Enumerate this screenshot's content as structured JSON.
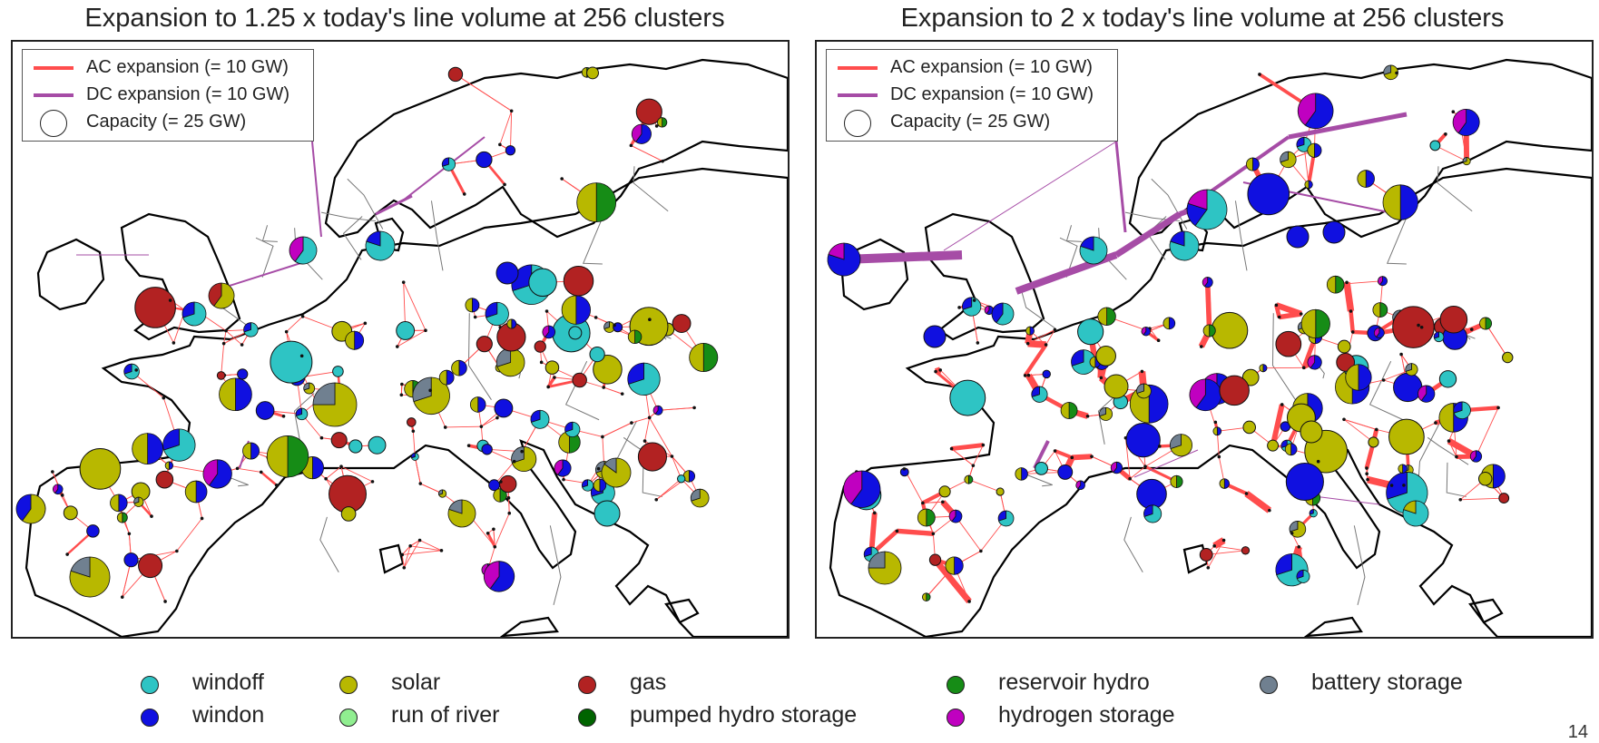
{
  "panels": [
    {
      "title": "Expansion to 1.25 x today's line volume at 256 clusters",
      "legend": [
        {
          "label": "AC expansion (= 10 GW)",
          "kind": "ac-line"
        },
        {
          "label": "DC expansion (= 10 GW)",
          "kind": "dc-line"
        },
        {
          "label": "Capacity (= 25 GW)",
          "kind": "capacity-circle"
        }
      ],
      "expansion_level": 1.25
    },
    {
      "title": "Expansion to 2 x today's line volume at 256 clusters",
      "legend": [
        {
          "label": "AC expansion (= 10 GW)",
          "kind": "ac-line"
        },
        {
          "label": "DC expansion (= 10 GW)",
          "kind": "dc-line"
        },
        {
          "label": "Capacity (= 25 GW)",
          "kind": "capacity-circle"
        }
      ],
      "expansion_level": 2
    }
  ],
  "carriers": [
    {
      "name": "windoff",
      "color": "#2ec4c4"
    },
    {
      "name": "windon",
      "color": "#1010e0"
    },
    {
      "name": "solar",
      "color": "#b8b800"
    },
    {
      "name": "run of river",
      "color": "#90ee90"
    },
    {
      "name": "gas",
      "color": "#b22222"
    },
    {
      "name": "pumped hydro storage",
      "color": "#006400"
    },
    {
      "name": "reservoir hydro",
      "color": "#168c16"
    },
    {
      "name": "hydrogen storage",
      "color": "#c000c0"
    },
    {
      "name": "battery storage",
      "color": "#708090"
    }
  ],
  "colors": {
    "ac": "#ff4d4d",
    "dc": "#a64ca6",
    "coast": "#000000",
    "border": "#777777"
  },
  "page_number": "14"
}
